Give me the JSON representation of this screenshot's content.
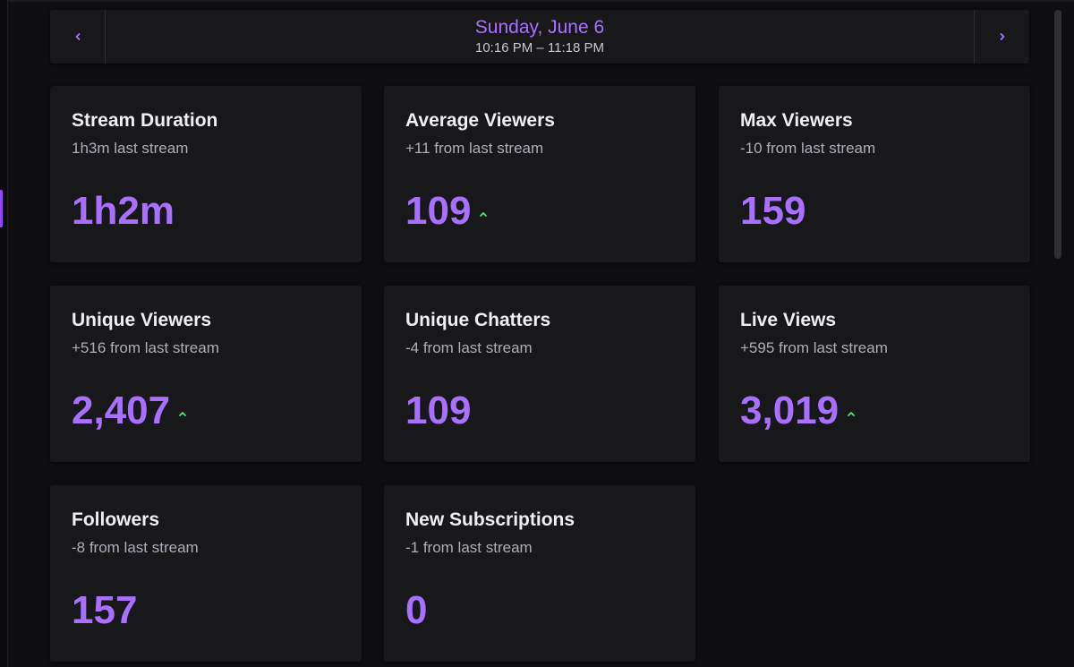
{
  "header": {
    "date": "Sunday, June 6",
    "time_range": "10:16 PM – 11:18 PM",
    "prev_icon": "chevron-left-icon",
    "next_icon": "chevron-right-icon"
  },
  "colors": {
    "accent": "#a970ff",
    "trend_up": "#4fe07a",
    "card_bg": "#18181b",
    "page_bg": "#0e0e10"
  },
  "cards": [
    {
      "title": "Stream Duration",
      "subtitle": "1h3m last stream",
      "value": "1h2m",
      "trend": "none"
    },
    {
      "title": "Average Viewers",
      "subtitle": "+11 from last stream",
      "value": "109",
      "trend": "up"
    },
    {
      "title": "Max Viewers",
      "subtitle": "-10 from last stream",
      "value": "159",
      "trend": "none"
    },
    {
      "title": "Unique Viewers",
      "subtitle": "+516 from last stream",
      "value": "2,407",
      "trend": "up"
    },
    {
      "title": "Unique Chatters",
      "subtitle": "-4 from last stream",
      "value": "109",
      "trend": "none"
    },
    {
      "title": "Live Views",
      "subtitle": "+595 from last stream",
      "value": "3,019",
      "trend": "up"
    },
    {
      "title": "Followers",
      "subtitle": "-8 from last stream",
      "value": "157",
      "trend": "none"
    },
    {
      "title": "New Subscriptions",
      "subtitle": "-1 from last stream",
      "value": "0",
      "trend": "none"
    }
  ]
}
